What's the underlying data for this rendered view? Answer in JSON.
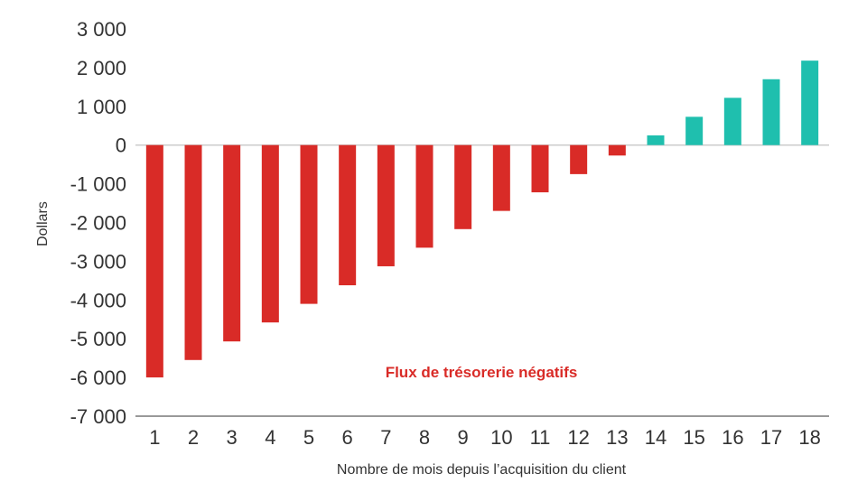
{
  "chart_data": {
    "type": "bar",
    "categories": [
      "1",
      "2",
      "3",
      "4",
      "5",
      "6",
      "7",
      "8",
      "9",
      "10",
      "11",
      "12",
      "13",
      "14",
      "15",
      "16",
      "17",
      "18"
    ],
    "values": [
      -6000,
      -5550,
      -5070,
      -4580,
      -4100,
      -3620,
      -3130,
      -2650,
      -2170,
      -1700,
      -1220,
      -750,
      -270,
      250,
      730,
      1220,
      1700,
      2180
    ],
    "xlabel": "Nombre de mois depuis l’acquisition du client",
    "ylabel": "Dollars",
    "ylim": [
      -7000,
      3000
    ],
    "yticks": [
      3000,
      2000,
      1000,
      0,
      -1000,
      -2000,
      -3000,
      -4000,
      -5000,
      -6000,
      -7000
    ],
    "ytick_labels": [
      "3 000",
      "2 000",
      "1 000",
      "0",
      "-1 000",
      "-2 000",
      "-3 000",
      "-4 000",
      "-5 000",
      "-6 000",
      "-7 000"
    ],
    "annotation": "Flux de trésorerie négatifs",
    "grid": false,
    "legend": "none",
    "colors": {
      "negative": "#d92b27",
      "positive": "#1fbfae",
      "annotation": "#d92b27",
      "axis": "#999999",
      "zero_line": "#cccccc",
      "text": "#333333"
    }
  }
}
